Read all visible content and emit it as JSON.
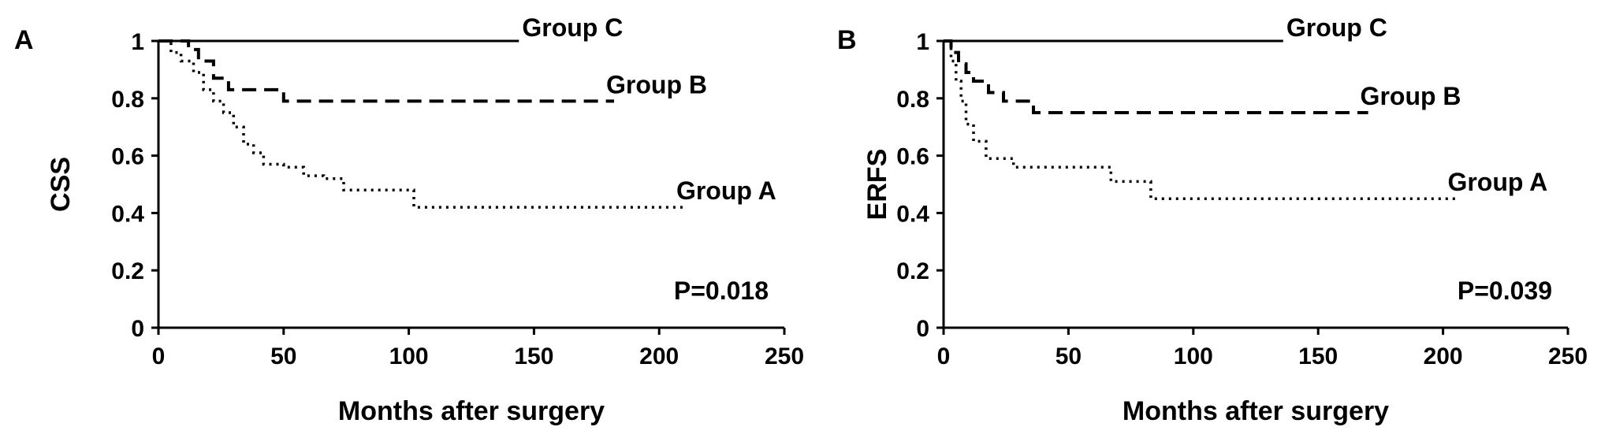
{
  "figure": {
    "panels": [
      {
        "letter": "A"
      },
      {
        "letter": "B"
      }
    ]
  },
  "chart_data": [
    {
      "type": "line",
      "panel": "A",
      "xlabel": "Months after surgery",
      "ylabel": "CSS",
      "xlim": [
        0,
        250
      ],
      "ylim": [
        0,
        1
      ],
      "xticks": [
        "0",
        "50",
        "100",
        "150",
        "200",
        "250"
      ],
      "yticks": [
        "0",
        "0.2",
        "0.4",
        "0.6",
        "0.8",
        "1"
      ],
      "grid": false,
      "legend": "none",
      "annotation": "P=0.018",
      "line_style": "step",
      "series": [
        {
          "name": "Group C",
          "dash": "solid",
          "x": [
            0,
            144
          ],
          "y": [
            1,
            1
          ]
        },
        {
          "name": "Group B",
          "dash": "dashed",
          "x": [
            0,
            12,
            16,
            22,
            28,
            38,
            50,
            182
          ],
          "y": [
            1,
            0.97,
            0.93,
            0.87,
            0.83,
            0.83,
            0.79,
            0.79
          ]
        },
        {
          "name": "Group A",
          "dash": "dotted",
          "x": [
            0,
            5,
            9,
            14,
            18,
            22,
            26,
            30,
            34,
            38,
            42,
            50,
            58,
            66,
            74,
            84,
            102,
            210
          ],
          "y": [
            1,
            0.96,
            0.93,
            0.89,
            0.83,
            0.79,
            0.75,
            0.7,
            0.64,
            0.61,
            0.57,
            0.56,
            0.53,
            0.52,
            0.48,
            0.48,
            0.42,
            0.42
          ]
        }
      ]
    },
    {
      "type": "line",
      "panel": "B",
      "xlabel": "Months after surgery",
      "ylabel": "ERFS",
      "xlim": [
        0,
        250
      ],
      "ylim": [
        0,
        1
      ],
      "xticks": [
        "0",
        "50",
        "100",
        "150",
        "200",
        "250"
      ],
      "yticks": [
        "0",
        "0.2",
        "0.4",
        "0.6",
        "0.8",
        "1"
      ],
      "grid": false,
      "legend": "none",
      "annotation": "P=0.039",
      "line_style": "step",
      "series": [
        {
          "name": "Group C",
          "dash": "solid",
          "x": [
            0,
            136
          ],
          "y": [
            1,
            1
          ]
        },
        {
          "name": "Group B",
          "dash": "dashed",
          "x": [
            0,
            3,
            6,
            9,
            12,
            18,
            24,
            36,
            170
          ],
          "y": [
            1,
            0.96,
            0.92,
            0.89,
            0.86,
            0.82,
            0.79,
            0.75,
            0.75
          ]
        },
        {
          "name": "Group A",
          "dash": "dotted",
          "x": [
            0,
            3,
            5,
            7,
            9,
            12,
            17,
            28,
            67,
            83,
            205
          ],
          "y": [
            1,
            0.93,
            0.86,
            0.79,
            0.71,
            0.65,
            0.59,
            0.56,
            0.51,
            0.45,
            0.45
          ]
        }
      ]
    }
  ]
}
